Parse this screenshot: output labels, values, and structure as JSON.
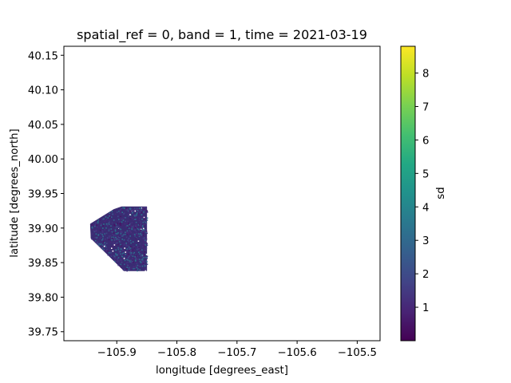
{
  "chart_data": {
    "type": "heatmap",
    "title": "spatial_ref = 0, band = 1, time = 2021-03-19",
    "xlabel": "longitude [degrees_east]",
    "ylabel": "latitude [degrees_north]",
    "xlim": [
      -105.988,
      -105.462
    ],
    "ylim": [
      39.737,
      40.163
    ],
    "xticks": [
      -105.9,
      -105.8,
      -105.7,
      -105.6,
      -105.5
    ],
    "xtick_labels": [
      "−105.9",
      "−105.8",
      "−105.7",
      "−105.6",
      "−105.5"
    ],
    "yticks": [
      39.75,
      39.8,
      39.85,
      39.9,
      39.95,
      40.0,
      40.05,
      40.1,
      40.15
    ],
    "ytick_labels": [
      "39.75",
      "39.80",
      "39.85",
      "39.90",
      "39.95",
      "40.00",
      "40.05",
      "40.10",
      "40.15"
    ],
    "grid": false,
    "colormap": "viridis",
    "colorbar": {
      "label": "sd",
      "range": [
        0,
        8.8
      ],
      "ticks": [
        1,
        2,
        3,
        4,
        5,
        6,
        7,
        8
      ],
      "tick_labels": [
        "1",
        "2",
        "3",
        "4",
        "5",
        "6",
        "7",
        "8"
      ]
    },
    "data_region": {
      "polygon_lonlat": [
        [
          -105.944,
          39.906
        ],
        [
          -105.905,
          39.927
        ],
        [
          -105.892,
          39.931
        ],
        [
          -105.85,
          39.931
        ],
        [
          -105.85,
          39.838
        ],
        [
          -105.888,
          39.838
        ],
        [
          -105.943,
          39.885
        ]
      ],
      "typical_sd": [
        0.8,
        1.6
      ]
    }
  }
}
